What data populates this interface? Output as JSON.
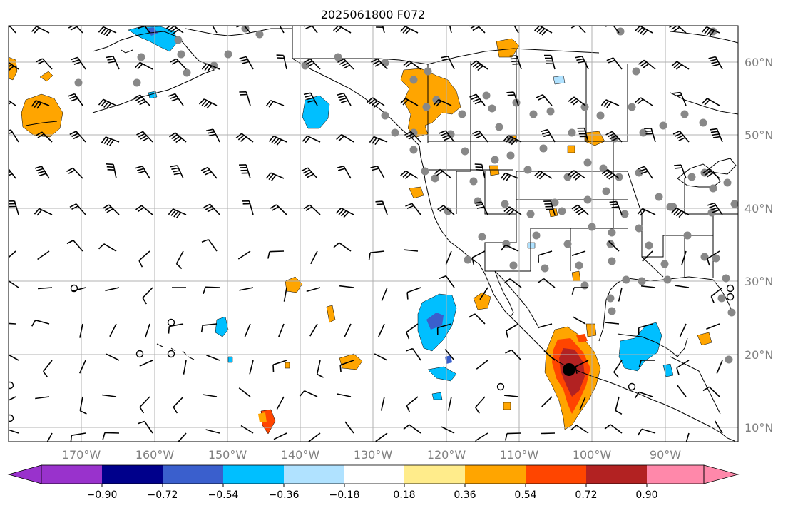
{
  "title": "2025061800 F072",
  "map": {
    "projection": "plate-carree",
    "lon_range": [
      -180,
      -80
    ],
    "lat_range": [
      8,
      65
    ],
    "gridlines": true,
    "lon_ticks": [
      "170°W",
      "160°W",
      "150°W",
      "140°W",
      "130°W",
      "120°W",
      "110°W",
      "100°W",
      "90°W"
    ],
    "lat_ticks": [
      "60°N",
      "50°N",
      "40°N",
      "30°N",
      "20°N",
      "10°N"
    ],
    "storm_center_lonlat": [
      -103,
      17.5
    ]
  },
  "colorbar": {
    "extend": "both",
    "colors": [
      "#9932cc",
      "#00008b",
      "#3a5fcd",
      "#00bfff",
      "#b0e2ff",
      "#ffffff",
      "#ffec8b",
      "#ffa500",
      "#ff4500",
      "#b22222",
      "#ff88aa"
    ],
    "labels": [
      "−0.90",
      "−0.72",
      "−0.54",
      "−0.36",
      "−0.18",
      "0.18",
      "0.36",
      "0.54",
      "0.72",
      "0.90"
    ]
  },
  "colors": {
    "land_outline": "#000000",
    "grid": "#b0b0b0",
    "station_dot": "#888888"
  }
}
